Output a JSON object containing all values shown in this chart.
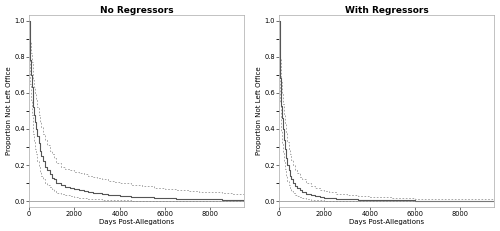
{
  "title_left": "No Regressors",
  "title_right": "With Regressors",
  "xlabel": "Days Post-Allegations",
  "ylabel": "Proportion Not Left Office",
  "xlim": [
    0,
    9500
  ],
  "ylim": [
    -0.03,
    1.03
  ],
  "yticks": [
    0.0,
    0.2,
    0.4,
    0.6,
    0.8,
    1.0
  ],
  "xticks": [
    0,
    2000,
    4000,
    6000,
    8000
  ],
  "bg_color": "#ffffff",
  "line_color": "#555555",
  "ci_color": "#999999",
  "title_fontsize": 6.5,
  "label_fontsize": 5.0,
  "tick_fontsize": 4.8,
  "title_fontweight": "bold"
}
